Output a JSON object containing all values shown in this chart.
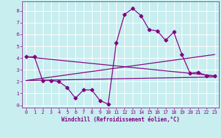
{
  "xlabel": "Windchill (Refroidissement éolien,°C)",
  "background_color": "#c8eef0",
  "grid_color": "#ffffff",
  "line_color": "#800080",
  "xlim": [
    -0.5,
    23.5
  ],
  "ylim": [
    -0.2,
    8.8
  ],
  "xticks": [
    0,
    1,
    2,
    3,
    4,
    5,
    6,
    7,
    8,
    9,
    10,
    11,
    12,
    13,
    14,
    15,
    16,
    17,
    18,
    19,
    20,
    21,
    22,
    23
  ],
  "yticks": [
    0,
    1,
    2,
    3,
    4,
    5,
    6,
    7,
    8
  ],
  "series1_x": [
    0,
    1,
    2,
    3,
    4,
    5,
    6,
    7,
    8,
    9,
    10,
    11,
    12,
    13,
    14,
    15,
    16,
    17,
    18,
    19,
    20,
    21,
    22,
    23
  ],
  "series1_y": [
    4.1,
    4.1,
    2.1,
    2.1,
    2.0,
    1.5,
    0.6,
    1.3,
    1.3,
    0.4,
    0.1,
    5.3,
    7.7,
    8.2,
    7.6,
    6.4,
    6.3,
    5.5,
    6.2,
    4.3,
    2.7,
    2.8,
    2.5,
    2.5
  ],
  "series2_x": [
    0,
    23
  ],
  "series2_y": [
    2.1,
    2.4
  ],
  "series3_x": [
    0,
    23
  ],
  "series3_y": [
    2.1,
    4.3
  ],
  "series4_x": [
    0,
    23
  ],
  "series4_y": [
    4.1,
    2.5
  ],
  "marker": "D",
  "markersize": 2.5,
  "linewidth": 0.9,
  "tick_fontsize": 5.0,
  "xlabel_fontsize": 5.5
}
